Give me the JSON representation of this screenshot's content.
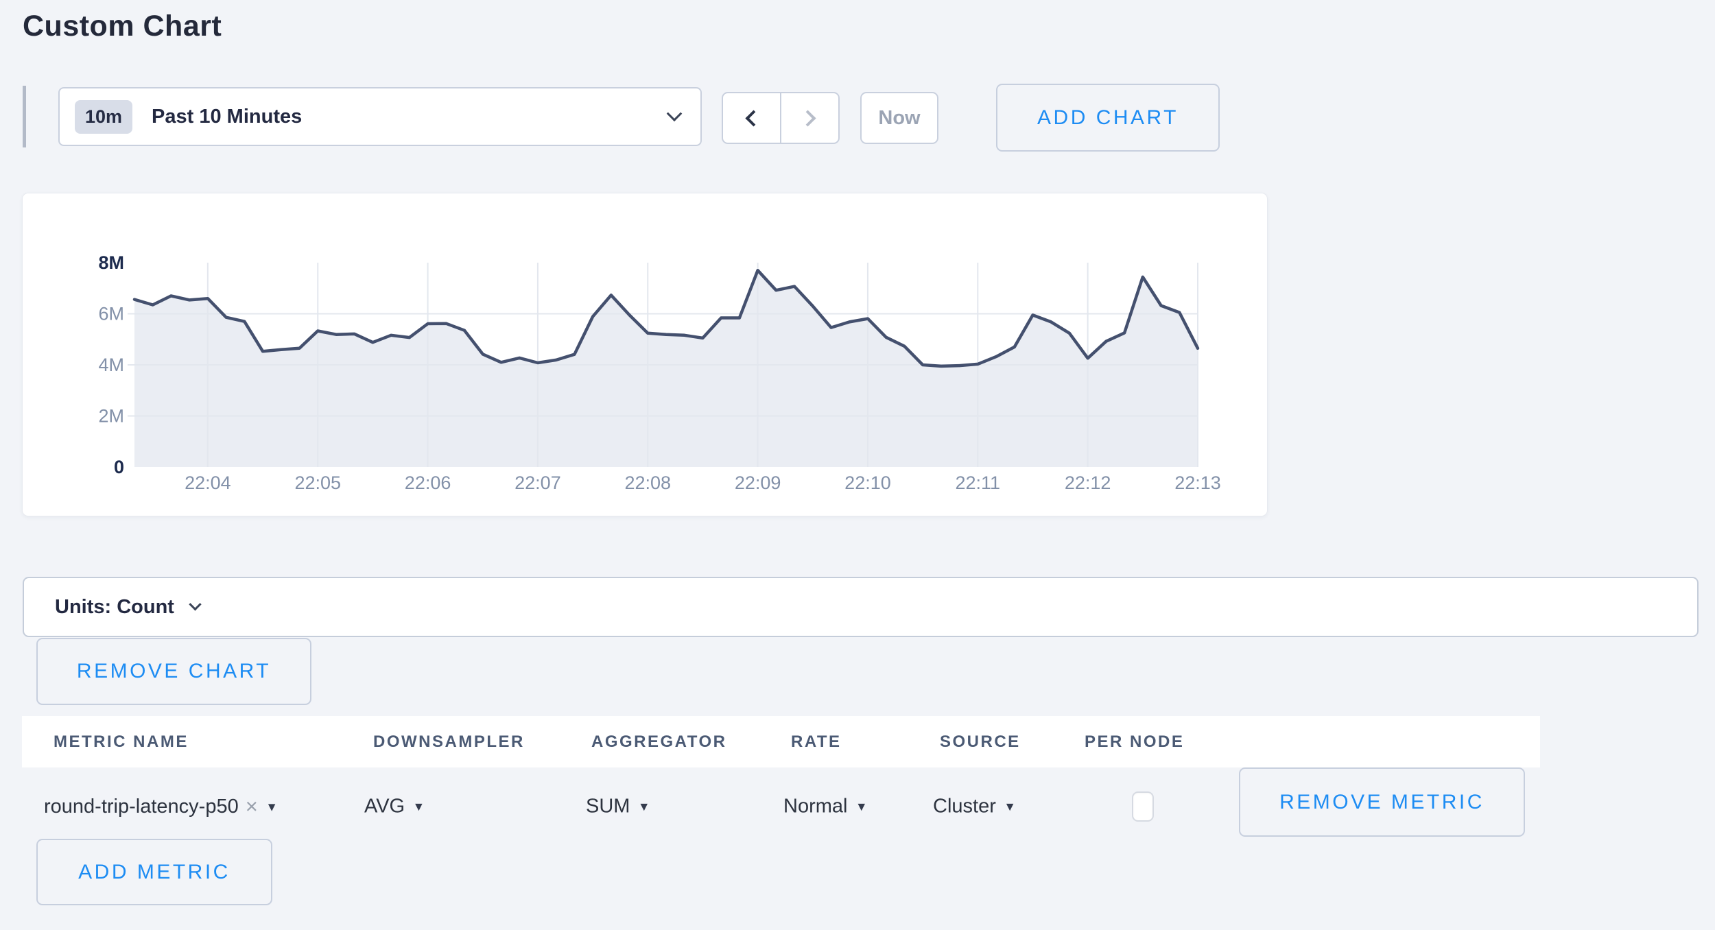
{
  "page": {
    "title": "Custom Chart"
  },
  "toolbar": {
    "range_badge": "10m",
    "range_label": "Past 10 Minutes",
    "now_label": "Now",
    "add_chart_label": "ADD CHART"
  },
  "chart_data": {
    "type": "area",
    "title": "",
    "xlabel": "",
    "ylabel": "",
    "ylim": [
      0,
      8000000
    ],
    "grid": true,
    "legend": "none",
    "line_color": "#44506e",
    "fill_color": "#eaedf3",
    "gridline_color": "#e3e7ee",
    "tick_color": "#8290a8",
    "bold_tick_color": "#1d2b4e",
    "x": [
      "22:03:20",
      "22:03:30",
      "22:03:40",
      "22:03:50",
      "22:04:00",
      "22:04:10",
      "22:04:20",
      "22:04:30",
      "22:04:40",
      "22:04:50",
      "22:05:00",
      "22:05:10",
      "22:05:20",
      "22:05:30",
      "22:05:40",
      "22:05:50",
      "22:06:00",
      "22:06:10",
      "22:06:20",
      "22:06:30",
      "22:06:40",
      "22:06:50",
      "22:07:00",
      "22:07:10",
      "22:07:20",
      "22:07:30",
      "22:07:40",
      "22:07:50",
      "22:08:00",
      "22:08:10",
      "22:08:20",
      "22:08:30",
      "22:08:40",
      "22:08:50",
      "22:09:00",
      "22:09:10",
      "22:09:20",
      "22:09:30",
      "22:09:40",
      "22:09:50",
      "22:10:00",
      "22:10:10",
      "22:10:20",
      "22:10:30",
      "22:10:40",
      "22:10:50",
      "22:11:00",
      "22:11:10",
      "22:11:20",
      "22:11:30",
      "22:11:40",
      "22:11:50",
      "22:12:00",
      "22:12:10",
      "22:12:20",
      "22:12:30",
      "22:12:40",
      "22:12:50",
      "22:13:00"
    ],
    "values_millions": [
      6.56,
      6.35,
      6.7,
      6.54,
      6.6,
      5.86,
      5.7,
      4.53,
      4.6,
      4.65,
      5.33,
      5.19,
      5.21,
      4.88,
      5.16,
      5.07,
      5.61,
      5.62,
      5.35,
      4.42,
      4.1,
      4.27,
      4.08,
      4.19,
      4.41,
      5.89,
      6.73,
      5.95,
      5.24,
      5.19,
      5.16,
      5.05,
      5.84,
      5.84,
      7.7,
      6.92,
      7.07,
      6.3,
      5.46,
      5.68,
      5.81,
      5.08,
      4.73,
      4.0,
      3.95,
      3.97,
      4.03,
      4.32,
      4.7,
      5.95,
      5.68,
      5.24,
      4.26,
      4.92,
      5.25,
      7.44,
      6.32,
      6.05,
      4.65
    ],
    "xticks": [
      "22:04",
      "22:05",
      "22:06",
      "22:07",
      "22:08",
      "22:09",
      "22:10",
      "22:11",
      "22:12",
      "22:13"
    ],
    "xtick_indices": [
      4,
      10,
      16,
      22,
      28,
      34,
      40,
      46,
      52,
      58
    ],
    "yticks": [
      {
        "label": "8M",
        "value": 8,
        "bold": true
      },
      {
        "label": "6M",
        "value": 6,
        "bold": false
      },
      {
        "label": "4M",
        "value": 4,
        "bold": false
      },
      {
        "label": "2M",
        "value": 2,
        "bold": false
      },
      {
        "label": "0",
        "value": 0,
        "bold": true
      }
    ]
  },
  "units_bar": {
    "label": "Units: Count"
  },
  "chart_actions": {
    "remove_chart_label": "REMOVE CHART",
    "add_metric_label": "ADD METRIC"
  },
  "metrics_table": {
    "columns": {
      "metric_name": "METRIC NAME",
      "downsampler": "DOWNSAMPLER",
      "aggregator": "AGGREGATOR",
      "rate": "RATE",
      "source": "SOURCE",
      "per_node": "PER NODE"
    },
    "rows": [
      {
        "metric_name": "round-trip-latency-p50",
        "remove_tag": "×",
        "dropdown_arrow": "▾",
        "downsampler": "AVG",
        "aggregator": "SUM",
        "rate": "Normal",
        "source": "Cluster",
        "per_node_checked": false,
        "remove_metric_label": "REMOVE METRIC"
      }
    ]
  },
  "colors": {
    "accent_blue": "#1d8cf3",
    "page_bg": "#f2f4f8",
    "border": "#c9d0de",
    "dark_text": "#232941"
  }
}
